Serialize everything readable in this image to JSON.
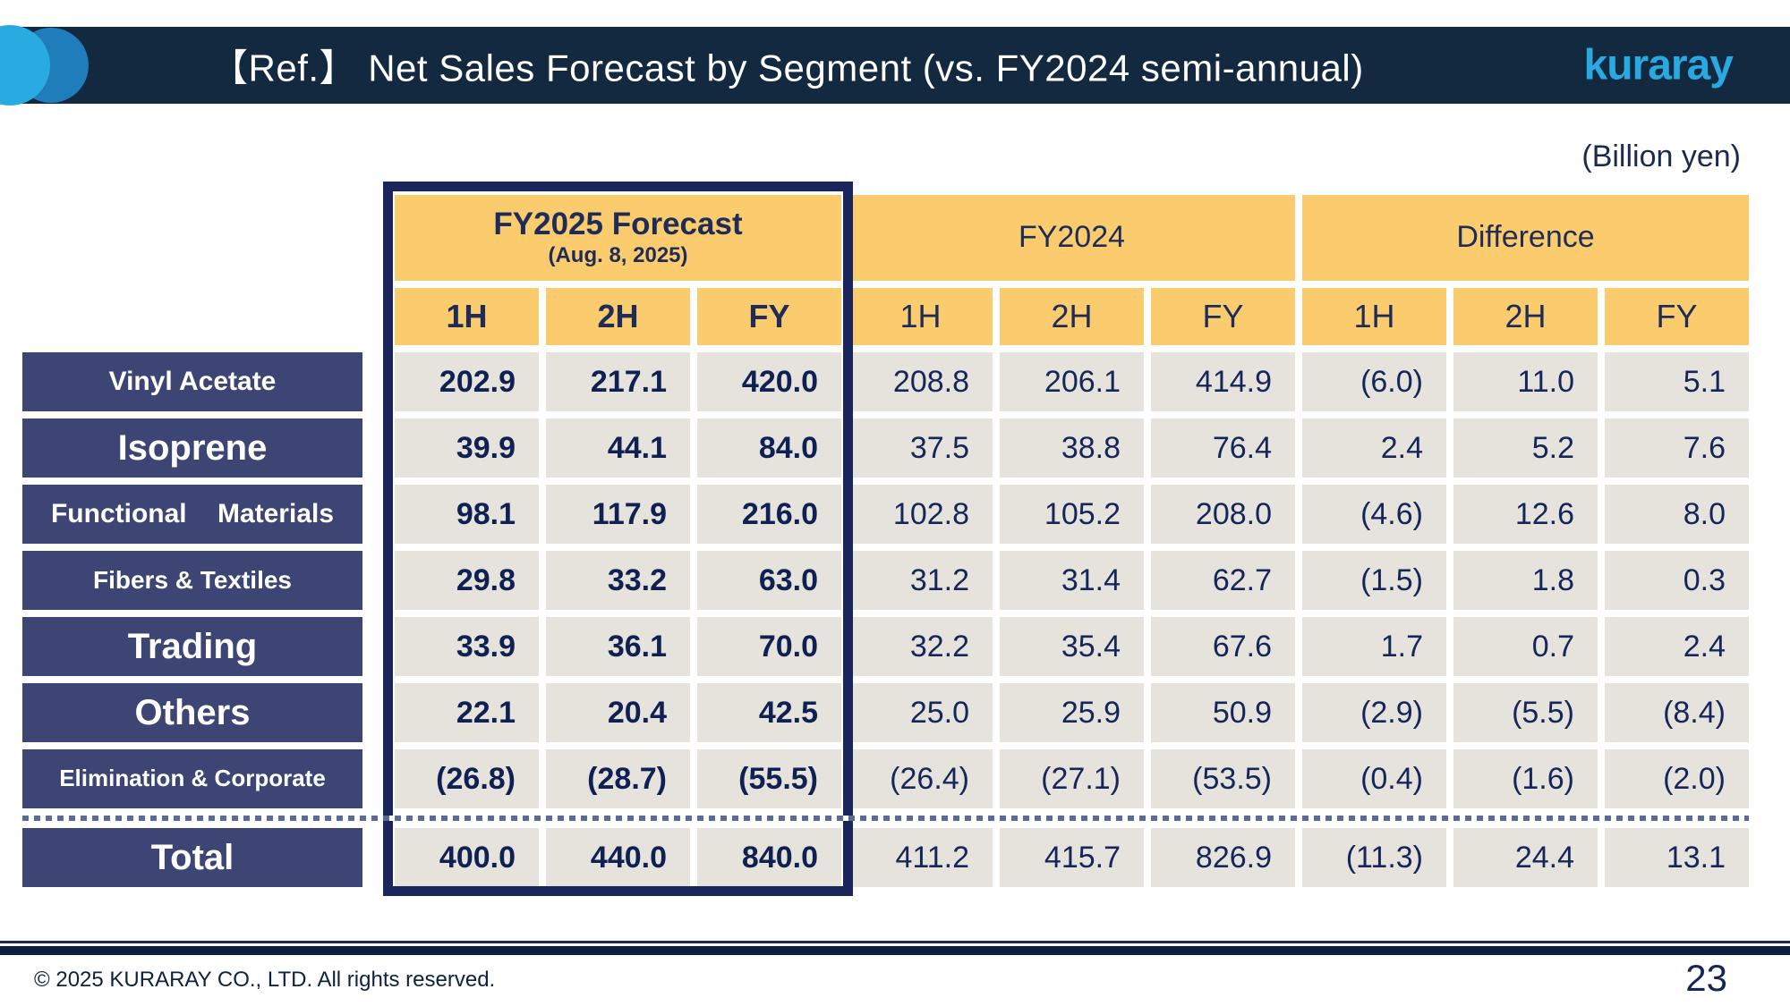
{
  "slide": {
    "title": "【Ref.】 Net Sales Forecast by Segment (vs. FY2024 semi-annual)",
    "logo": "kuraray",
    "unit_note": "(Billion yen)",
    "copyright": "© 2025 KURARAY CO., LTD. All rights reserved.",
    "page_number": "23"
  },
  "colors": {
    "title_bar_navy": "#132940",
    "highlight_border_navy": "#1a255c",
    "row_label_navy": "#3c4573",
    "header_yellow": "#fbcc6d",
    "cell_gray": "#e6e3dc",
    "text_navy": "#15265b",
    "logo_blue": "#2aa9e0",
    "circle_cyan": "#29abe2",
    "circle_blue": "#1e7dba"
  },
  "table": {
    "groups": [
      {
        "label": "FY2025 Forecast",
        "sublabel": "(Aug. 8, 2025)"
      },
      {
        "label": "FY2024"
      },
      {
        "label": "Difference"
      }
    ],
    "period_headers": [
      "1H",
      "2H",
      "FY",
      "1H",
      "2H",
      "FY",
      "1H",
      "2H",
      "FY"
    ],
    "rows": [
      {
        "label": "Vinyl Acetate",
        "values": [
          "202.9",
          "217.1",
          "420.0",
          "208.8",
          "206.1",
          "414.9",
          "(6.0)",
          "11.0",
          "5.1"
        ]
      },
      {
        "label": "Isoprene",
        "values": [
          "39.9",
          "44.1",
          "84.0",
          "37.5",
          "38.8",
          "76.4",
          "2.4",
          "5.2",
          "7.6"
        ]
      },
      {
        "label": "Functional Materials",
        "values": [
          "98.1",
          "117.9",
          "216.0",
          "102.8",
          "105.2",
          "208.0",
          "(4.6)",
          "12.6",
          "8.0"
        ]
      },
      {
        "label": "Fibers & Textiles",
        "values": [
          "29.8",
          "33.2",
          "63.0",
          "31.2",
          "31.4",
          "62.7",
          "(1.5)",
          "1.8",
          "0.3"
        ]
      },
      {
        "label": "Trading",
        "values": [
          "33.9",
          "36.1",
          "70.0",
          "32.2",
          "35.4",
          "67.6",
          "1.7",
          "0.7",
          "2.4"
        ]
      },
      {
        "label": "Others",
        "values": [
          "22.1",
          "20.4",
          "42.5",
          "25.0",
          "25.9",
          "50.9",
          "(2.9)",
          "(5.5)",
          "(8.4)"
        ]
      },
      {
        "label": "Elimination & Corporate",
        "values": [
          "(26.8)",
          "(28.7)",
          "(55.5)",
          "(26.4)",
          "(27.1)",
          "(53.5)",
          "(0.4)",
          "(1.6)",
          "(2.0)"
        ]
      },
      {
        "label": "Total",
        "values": [
          "400.0",
          "440.0",
          "840.0",
          "411.2",
          "415.7",
          "826.9",
          "(11.3)",
          "24.4",
          "13.1"
        ]
      }
    ]
  }
}
